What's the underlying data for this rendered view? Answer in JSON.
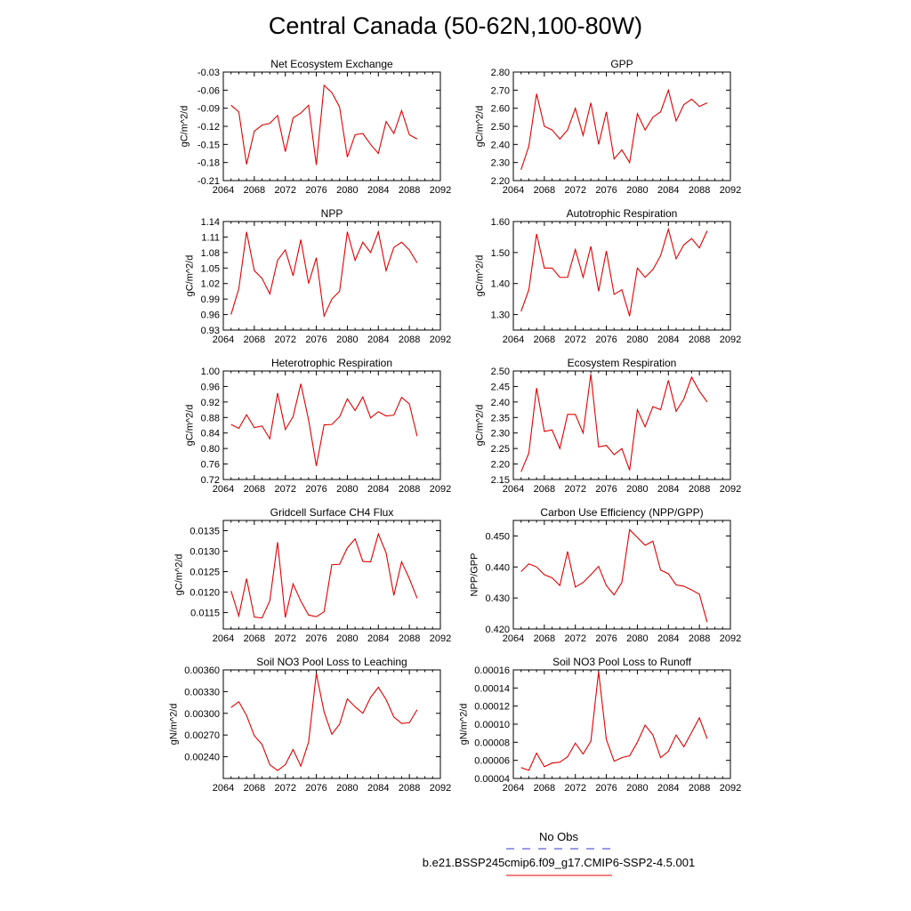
{
  "title": "Central Canada (50-62N,100-80W)",
  "legend": {
    "entries": [
      {
        "label": "No Obs",
        "color": "#3333cc",
        "style": "dashed"
      },
      {
        "label": "b.e21.BSSP245cmip6.f09_g17.CMIP6-SSP2-4.5.001",
        "color": "#e00000",
        "style": "solid"
      }
    ]
  },
  "chart_data": [
    {
      "type": "line",
      "title": "Net Ecosystem Exchange",
      "ylabel": "gC/m^2/d",
      "xlim": [
        2064,
        2092
      ],
      "xticks": [
        "2064",
        "2068",
        "2072",
        "2076",
        "2080",
        "2084",
        "2088",
        "2092"
      ],
      "ylim": [
        -0.21,
        -0.03
      ],
      "yticks": [
        "-0.21",
        "-0.18",
        "-0.15",
        "-0.12",
        "-0.09",
        "-0.06",
        "-0.03"
      ],
      "x": [
        2065,
        2066,
        2067,
        2068,
        2069,
        2070,
        2071,
        2072,
        2073,
        2074,
        2075,
        2076,
        2077,
        2078,
        2079,
        2080,
        2081,
        2082,
        2083,
        2084,
        2085,
        2086,
        2087,
        2088,
        2089
      ],
      "series": [
        {
          "color": "#e00000",
          "values": [
            -0.085,
            -0.096,
            -0.183,
            -0.128,
            -0.118,
            -0.115,
            -0.102,
            -0.162,
            -0.106,
            -0.098,
            -0.085,
            -0.184,
            -0.052,
            -0.064,
            -0.088,
            -0.171,
            -0.134,
            -0.132,
            -0.15,
            -0.165,
            -0.112,
            -0.132,
            -0.094,
            -0.134,
            -0.141
          ]
        }
      ]
    },
    {
      "type": "line",
      "title": "GPP",
      "ylabel": "gC/m^2/d",
      "xlim": [
        2064,
        2092
      ],
      "xticks": [
        "2064",
        "2068",
        "2072",
        "2076",
        "2080",
        "2084",
        "2088",
        "2092"
      ],
      "ylim": [
        2.2,
        2.8
      ],
      "yticks": [
        "2.20",
        "2.30",
        "2.40",
        "2.50",
        "2.60",
        "2.70",
        "2.80"
      ],
      "x": [
        2065,
        2066,
        2067,
        2068,
        2069,
        2070,
        2071,
        2072,
        2073,
        2074,
        2075,
        2076,
        2077,
        2078,
        2079,
        2080,
        2081,
        2082,
        2083,
        2084,
        2085,
        2086,
        2087,
        2088,
        2089
      ],
      "series": [
        {
          "color": "#e00000",
          "values": [
            2.26,
            2.39,
            2.68,
            2.5,
            2.48,
            2.43,
            2.48,
            2.6,
            2.45,
            2.63,
            2.4,
            2.58,
            2.32,
            2.37,
            2.3,
            2.57,
            2.48,
            2.55,
            2.58,
            2.7,
            2.53,
            2.62,
            2.65,
            2.61,
            2.63
          ]
        }
      ]
    },
    {
      "type": "line",
      "title": "NPP",
      "ylabel": "gC/m^2/d",
      "xlim": [
        2064,
        2092
      ],
      "xticks": [
        "2064",
        "2068",
        "2072",
        "2076",
        "2080",
        "2084",
        "2088",
        "2092"
      ],
      "ylim": [
        0.93,
        1.14
      ],
      "yticks": [
        "0.93",
        "0.96",
        "0.99",
        "1.02",
        "1.05",
        "1.08",
        "1.11",
        "1.14"
      ],
      "x": [
        2065,
        2066,
        2067,
        2068,
        2069,
        2070,
        2071,
        2072,
        2073,
        2074,
        2075,
        2076,
        2077,
        2078,
        2079,
        2080,
        2081,
        2082,
        2083,
        2084,
        2085,
        2086,
        2087,
        2088,
        2089
      ],
      "series": [
        {
          "color": "#e00000",
          "values": [
            0.96,
            1.01,
            1.12,
            1.045,
            1.03,
            1.0,
            1.065,
            1.085,
            1.035,
            1.105,
            1.02,
            1.07,
            0.957,
            0.99,
            1.005,
            1.12,
            1.065,
            1.1,
            1.08,
            1.12,
            1.045,
            1.09,
            1.1,
            1.085,
            1.06
          ]
        }
      ]
    },
    {
      "type": "line",
      "title": "Autotrophic Respiration",
      "ylabel": "gC/m^2/d",
      "xlim": [
        2064,
        2092
      ],
      "xticks": [
        "2064",
        "2068",
        "2072",
        "2076",
        "2080",
        "2084",
        "2088",
        "2092"
      ],
      "ylim": [
        1.25,
        1.6
      ],
      "yticks": [
        "1.30",
        "1.40",
        "1.50",
        "1.60"
      ],
      "x": [
        2065,
        2066,
        2067,
        2068,
        2069,
        2070,
        2071,
        2072,
        2073,
        2074,
        2075,
        2076,
        2077,
        2078,
        2079,
        2080,
        2081,
        2082,
        2083,
        2084,
        2085,
        2086,
        2087,
        2088,
        2089
      ],
      "series": [
        {
          "color": "#e00000",
          "values": [
            1.31,
            1.38,
            1.56,
            1.45,
            1.45,
            1.42,
            1.42,
            1.51,
            1.42,
            1.52,
            1.375,
            1.505,
            1.365,
            1.38,
            1.295,
            1.45,
            1.42,
            1.445,
            1.49,
            1.575,
            1.48,
            1.525,
            1.545,
            1.515,
            1.57
          ]
        }
      ]
    },
    {
      "type": "line",
      "title": "Heterotrophic Respiration",
      "ylabel": "gC/m^2/d",
      "xlim": [
        2064,
        2092
      ],
      "xticks": [
        "2064",
        "2068",
        "2072",
        "2076",
        "2080",
        "2084",
        "2088",
        "2092"
      ],
      "ylim": [
        0.72,
        1.0
      ],
      "yticks": [
        "0.72",
        "0.76",
        "0.80",
        "0.84",
        "0.88",
        "0.92",
        "0.96",
        "1.00"
      ],
      "x": [
        2065,
        2066,
        2067,
        2068,
        2069,
        2070,
        2071,
        2072,
        2073,
        2074,
        2075,
        2076,
        2077,
        2078,
        2079,
        2080,
        2081,
        2082,
        2083,
        2084,
        2085,
        2086,
        2087,
        2088,
        2089
      ],
      "series": [
        {
          "color": "#e00000",
          "values": [
            0.862,
            0.852,
            0.887,
            0.854,
            0.858,
            0.825,
            0.943,
            0.849,
            0.882,
            0.967,
            0.874,
            0.755,
            0.861,
            0.862,
            0.882,
            0.928,
            0.898,
            0.933,
            0.879,
            0.895,
            0.884,
            0.886,
            0.932,
            0.915,
            0.832
          ]
        }
      ]
    },
    {
      "type": "line",
      "title": "Ecosystem Respiration",
      "ylabel": "gC/m^2/d",
      "xlim": [
        2064,
        2092
      ],
      "xticks": [
        "2064",
        "2068",
        "2072",
        "2076",
        "2080",
        "2084",
        "2088",
        "2092"
      ],
      "ylim": [
        2.15,
        2.5
      ],
      "yticks": [
        "2.15",
        "2.20",
        "2.25",
        "2.30",
        "2.35",
        "2.40",
        "2.45",
        "2.50"
      ],
      "x": [
        2065,
        2066,
        2067,
        2068,
        2069,
        2070,
        2071,
        2072,
        2073,
        2074,
        2075,
        2076,
        2077,
        2078,
        2079,
        2080,
        2081,
        2082,
        2083,
        2084,
        2085,
        2086,
        2087,
        2088,
        2089
      ],
      "series": [
        {
          "color": "#e00000",
          "values": [
            2.175,
            2.235,
            2.445,
            2.305,
            2.31,
            2.25,
            2.36,
            2.36,
            2.3,
            2.49,
            2.255,
            2.26,
            2.23,
            2.25,
            2.18,
            2.375,
            2.32,
            2.385,
            2.375,
            2.47,
            2.37,
            2.41,
            2.48,
            2.435,
            2.4
          ]
        }
      ]
    },
    {
      "type": "line",
      "title": "Gridcell Surface CH4 Flux",
      "ylabel": "gC/m^2/d",
      "xlim": [
        2064,
        2092
      ],
      "xticks": [
        "2064",
        "2068",
        "2072",
        "2076",
        "2080",
        "2084",
        "2088",
        "2092"
      ],
      "ylim": [
        0.0111,
        0.01375
      ],
      "yticks": [
        "0.0115",
        "0.0120",
        "0.0125",
        "0.0130",
        "0.0135"
      ],
      "x": [
        2065,
        2066,
        2067,
        2068,
        2069,
        2070,
        2071,
        2072,
        2073,
        2074,
        2075,
        2076,
        2077,
        2078,
        2079,
        2080,
        2081,
        2082,
        2083,
        2084,
        2085,
        2086,
        2087,
        2088,
        2089
      ],
      "series": [
        {
          "color": "#e00000",
          "values": [
            0.01203,
            0.01142,
            0.01233,
            0.01139,
            0.01137,
            0.01179,
            0.01322,
            0.01138,
            0.0122,
            0.01178,
            0.01144,
            0.0114,
            0.01152,
            0.01267,
            0.01268,
            0.01308,
            0.0133,
            0.01275,
            0.01274,
            0.01342,
            0.01296,
            0.01192,
            0.01274,
            0.01233,
            0.01185
          ]
        }
      ]
    },
    {
      "type": "line",
      "title": "Carbon Use Efficiency (NPP/GPP)",
      "ylabel": "NPP/GPP",
      "xlim": [
        2064,
        2092
      ],
      "xticks": [
        "2064",
        "2068",
        "2072",
        "2076",
        "2080",
        "2084",
        "2088",
        "2092"
      ],
      "ylim": [
        0.42,
        0.455
      ],
      "yticks": [
        "0.420",
        "0.430",
        "0.440",
        "0.450"
      ],
      "x": [
        2065,
        2066,
        2067,
        2068,
        2069,
        2070,
        2071,
        2072,
        2073,
        2074,
        2075,
        2076,
        2077,
        2078,
        2079,
        2080,
        2081,
        2082,
        2083,
        2084,
        2085,
        2086,
        2087,
        2088,
        2089
      ],
      "series": [
        {
          "color": "#e00000",
          "values": [
            0.4385,
            0.441,
            0.44,
            0.4375,
            0.4365,
            0.434,
            0.445,
            0.4335,
            0.435,
            0.4375,
            0.4402,
            0.434,
            0.431,
            0.435,
            0.452,
            0.4495,
            0.447,
            0.4483,
            0.439,
            0.4378,
            0.4342,
            0.4338,
            0.4326,
            0.4312,
            0.4222
          ]
        }
      ]
    },
    {
      "type": "line",
      "title": "Soil NO3 Pool Loss to Leaching",
      "ylabel": "gN/m^2/d",
      "xlim": [
        2064,
        2092
      ],
      "xticks": [
        "2064",
        "2068",
        "2072",
        "2076",
        "2080",
        "2084",
        "2088",
        "2092"
      ],
      "ylim": [
        0.0021,
        0.0036
      ],
      "yticks": [
        "0.00240",
        "0.00270",
        "0.00300",
        "0.00330",
        "0.00360"
      ],
      "x": [
        2065,
        2066,
        2067,
        2068,
        2069,
        2070,
        2071,
        2072,
        2073,
        2074,
        2075,
        2076,
        2077,
        2078,
        2079,
        2080,
        2081,
        2082,
        2083,
        2084,
        2085,
        2086,
        2087,
        2088,
        2089
      ],
      "series": [
        {
          "color": "#e00000",
          "values": [
            0.00308,
            0.00316,
            0.00297,
            0.00269,
            0.00257,
            0.00229,
            0.00221,
            0.00229,
            0.0025,
            0.00227,
            0.0026,
            0.00355,
            0.00302,
            0.00271,
            0.00285,
            0.0032,
            0.00309,
            0.003,
            0.00322,
            0.00336,
            0.00319,
            0.00295,
            0.00286,
            0.00287,
            0.00305
          ]
        }
      ]
    },
    {
      "type": "line",
      "title": "Soil NO3 Pool Loss to Runoff",
      "ylabel": "gN/m^2/d",
      "xlim": [
        2064,
        2092
      ],
      "xticks": [
        "2064",
        "2068",
        "2072",
        "2076",
        "2080",
        "2084",
        "2088",
        "2092"
      ],
      "ylim": [
        4e-05,
        0.00016
      ],
      "yticks": [
        "0.00004",
        "0.00006",
        "0.00008",
        "0.00010",
        "0.00012",
        "0.00014",
        "0.00016"
      ],
      "x": [
        2065,
        2066,
        2067,
        2068,
        2069,
        2070,
        2071,
        2072,
        2073,
        2074,
        2075,
        2076,
        2077,
        2078,
        2079,
        2080,
        2081,
        2082,
        2083,
        2084,
        2085,
        2086,
        2087,
        2088,
        2089
      ],
      "series": [
        {
          "color": "#e00000",
          "values": [
            5.2e-05,
            4.9e-05,
            6.8e-05,
            5.3e-05,
            5.7e-05,
            5.8e-05,
            6.4e-05,
            7.9e-05,
            6.7e-05,
            8.1e-05,
            0.000158,
            8.3e-05,
            5.9e-05,
            6.3e-05,
            6.5e-05,
            8e-05,
            9.9e-05,
            8.8e-05,
            6.3e-05,
            7e-05,
            8.8e-05,
            7.5e-05,
            9.1e-05,
            0.000107,
            8.4e-05
          ]
        }
      ]
    }
  ]
}
